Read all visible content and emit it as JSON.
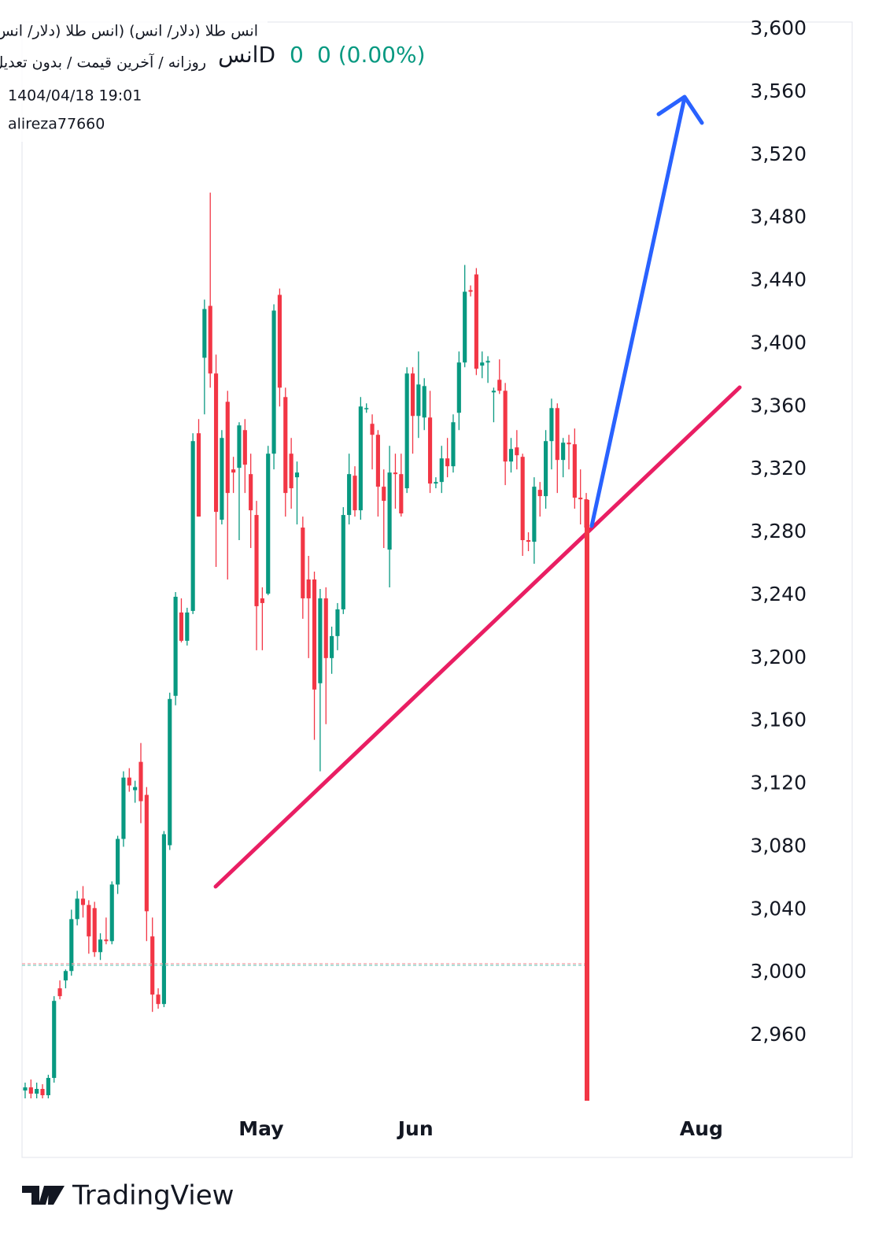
{
  "header": {
    "title": "انس طلا (دلار/ انس) (انس طلا (دلار/ انس))",
    "subtitle": "روزانه / آخرین قیمت / بدون تعدیل",
    "symbol": "انسD",
    "change": "0",
    "change_pct": "0 (0.00%)",
    "datetime": "1404/04/18 19:01",
    "author": "alireza77660"
  },
  "footer": {
    "brand": "TradingView"
  },
  "chart_data": {
    "type": "candlestick",
    "up_color": "#089981",
    "down_color": "#f23645",
    "grid": false,
    "open": [
      2925,
      2927,
      2923,
      2926,
      2922,
      2933,
      2990,
      2995,
      3001,
      3034,
      3047,
      3043,
      3041,
      3013,
      3021,
      3020,
      3056,
      3085,
      3124,
      3116,
      3134,
      3113,
      3023,
      2986,
      2980,
      3081,
      3176,
      3229,
      3211,
      3230,
      3343,
      3391,
      3424,
      3381,
      3288,
      3363,
      3320,
      3321,
      3345,
      3317,
      3291,
      3238,
      3241,
      3330,
      3431,
      3366,
      3330,
      3315,
      3283,
      3250,
      3250,
      3184,
      3238,
      3200,
      3214,
      3231,
      3291,
      3316,
      3294,
      3359,
      3349,
      3342,
      3309,
      3269,
      3318,
      3317,
      3308,
      3381,
      3354,
      3353,
      3353,
      3311,
      3312,
      3327,
      3322,
      3356,
      3388,
      3434,
      3444,
      3386,
      3388,
      3369,
      3377,
      3370,
      3325,
      3334,
      3328,
      3275,
      3274,
      3307,
      3303,
      3338,
      3359,
      3326,
      3337,
      3336,
      3302,
      3301
    ],
    "high": [
      2930,
      2932,
      2930,
      2929,
      2935,
      2985,
      2995,
      3002,
      3040,
      3052,
      3055,
      3046,
      3045,
      3025,
      3035,
      3058,
      3087,
      3128,
      3130,
      3122,
      3146,
      3118,
      3035,
      2990,
      3090,
      3178,
      3242,
      3238,
      3232,
      3343,
      3352,
      3428,
      3496,
      3393,
      3345,
      3370,
      3328,
      3350,
      3352,
      3330,
      3300,
      3245,
      3335,
      3425,
      3435,
      3372,
      3340,
      3325,
      3290,
      3265,
      3255,
      3244,
      3245,
      3220,
      3235,
      3296,
      3330,
      3322,
      3366,
      3362,
      3355,
      3345,
      3320,
      3335,
      3330,
      3330,
      3385,
      3385,
      3395,
      3378,
      3370,
      3315,
      3335,
      3340,
      3355,
      3395,
      3450,
      3437,
      3448,
      3395,
      3392,
      3372,
      3390,
      3375,
      3340,
      3345,
      3330,
      3280,
      3315,
      3312,
      3345,
      3365,
      3362,
      3340,
      3342,
      3346,
      3320,
      3305
    ],
    "low": [
      2920,
      2920,
      2920,
      2920,
      2920,
      2930,
      2983,
      2990,
      2998,
      3030,
      3035,
      3012,
      3010,
      3008,
      3018,
      3018,
      3050,
      3080,
      3115,
      3108,
      3095,
      3020,
      2975,
      2977,
      2978,
      3078,
      3170,
      3210,
      3208,
      3228,
      3290,
      3355,
      3372,
      3258,
      3285,
      3250,
      3305,
      3275,
      3305,
      3270,
      3205,
      3205,
      3240,
      3320,
      3360,
      3290,
      3295,
      3285,
      3225,
      3200,
      3148,
      3128,
      3158,
      3190,
      3205,
      3228,
      3285,
      3290,
      3288,
      3356,
      3320,
      3290,
      3270,
      3245,
      3295,
      3290,
      3305,
      3330,
      3340,
      3345,
      3305,
      3308,
      3305,
      3315,
      3318,
      3345,
      3385,
      3430,
      3380,
      3378,
      3375,
      3350,
      3368,
      3310,
      3318,
      3320,
      3265,
      3268,
      3260,
      3290,
      3295,
      3320,
      3305,
      3315,
      3320,
      3295,
      3285,
      3280
    ],
    "close": [
      2927,
      2923,
      2926,
      2922,
      2933,
      2982,
      2985,
      3001,
      3034,
      3047,
      3043,
      3023,
      3013,
      3021,
      3020,
      3056,
      3085,
      3124,
      3119,
      3118,
      3109,
      3039,
      2986,
      2980,
      3088,
      3174,
      3239,
      3211,
      3229,
      3338,
      3290,
      3422,
      3381,
      3293,
      3340,
      3305,
      3318,
      3348,
      3323,
      3294,
      3233,
      3235,
      3330,
      3421,
      3372,
      3305,
      3308,
      3318,
      3238,
      3238,
      3180,
      3238,
      3200,
      3214,
      3231,
      3291,
      3317,
      3294,
      3360,
      3359,
      3342,
      3309,
      3300,
      3318,
      3317,
      3292,
      3381,
      3354,
      3374,
      3373,
      3311,
      3312,
      3327,
      3322,
      3350,
      3388,
      3433,
      3433,
      3384,
      3388,
      3389,
      3370,
      3370,
      3325,
      3333,
      3329,
      3275,
      3274,
      3309,
      3303,
      3338,
      3359,
      3326,
      3337,
      3336,
      3302,
      3301,
      3283
    ],
    "xlim": [
      -0.54,
      124.2
    ],
    "xticks": [
      {
        "value": 40.8,
        "label": "May"
      },
      {
        "value": 67.5,
        "label": "Jun"
      },
      {
        "value": 116.9,
        "label": "Aug"
      }
    ],
    "ylim": [
      2918.5,
      3604.5
    ],
    "yticks": [
      {
        "value": 2960,
        "label": "2,960"
      },
      {
        "value": 3000,
        "label": "3,000"
      },
      {
        "value": 3040,
        "label": "3,040"
      },
      {
        "value": 3080,
        "label": "3,080"
      },
      {
        "value": 3120,
        "label": "3,120"
      },
      {
        "value": 3160,
        "label": "3,160"
      },
      {
        "value": 3200,
        "label": "3,200"
      },
      {
        "value": 3240,
        "label": "3,240"
      },
      {
        "value": 3280,
        "label": "3,280"
      },
      {
        "value": 3320,
        "label": "3,320"
      },
      {
        "value": 3360,
        "label": "3,360"
      },
      {
        "value": 3400,
        "label": "3,400"
      },
      {
        "value": 3440,
        "label": "3,440"
      },
      {
        "value": 3480,
        "label": "3,480"
      },
      {
        "value": 3520,
        "label": "3,520"
      },
      {
        "value": 3560,
        "label": "3,560"
      },
      {
        "value": 3600,
        "label": "3,600"
      }
    ]
  }
}
